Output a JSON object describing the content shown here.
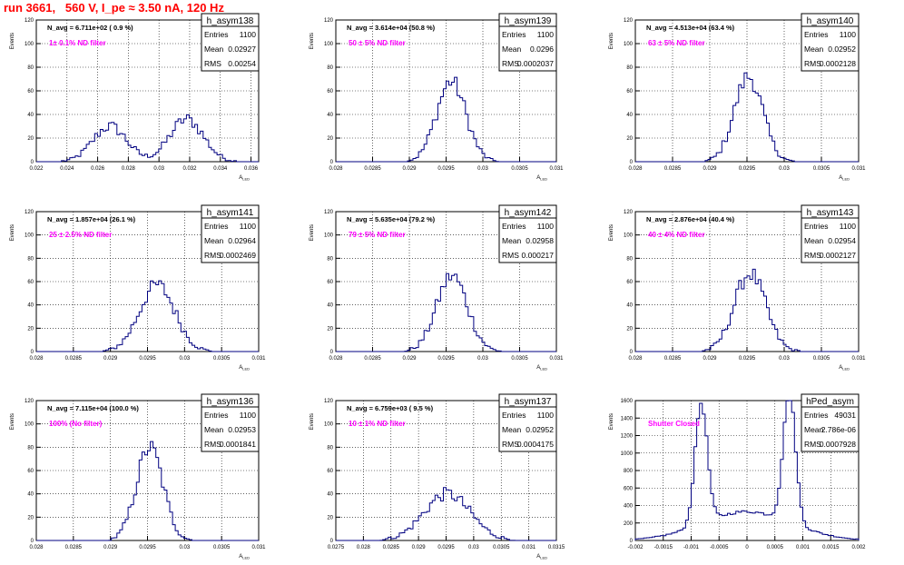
{
  "canvas_title": "run 3661,   560 V, I_pe ≈ 3.50 nA, 120 Hz",
  "colors": {
    "title": "#ff0000",
    "histogram": "#000080",
    "filter_label": "#ff00ff",
    "grid": "#000000",
    "axes": "#000000"
  },
  "chart_data": [
    {
      "type": "histogram",
      "name": "h_asym138",
      "navg": "N_avg = 6.711e+02 ( 0.9 %)",
      "filter": "1± 0.1% ND filter",
      "stats": {
        "entries": "1100",
        "mean": "0.02927",
        "rms": "0.00254"
      },
      "ylabel": "Events",
      "xlabel": "A_{LED}",
      "xlim": [
        0.022,
        0.0365
      ],
      "ylim": [
        0,
        120
      ],
      "xticks": [
        0.022,
        0.024,
        0.026,
        0.028,
        0.03,
        0.032,
        0.034,
        0.036
      ],
      "xticklabels": [
        "0.022",
        "0.024",
        "0.026",
        "0.028",
        "0.03",
        "0.032",
        "0.034",
        "0.036"
      ],
      "yticks": [
        0,
        20,
        40,
        60,
        80,
        100,
        120
      ],
      "yticklabels": [
        "0",
        "20",
        "40",
        "60",
        "80",
        "100",
        "120"
      ],
      "grid": true,
      "peaks": [
        [
          0.0268,
          0.0011,
          30
        ],
        [
          0.0318,
          0.0011,
          36
        ]
      ]
    },
    {
      "type": "histogram",
      "name": "h_asym139",
      "navg": "N_avg = 3.614e+04 (50.8 %)",
      "filter": "50 ± 5% ND filter",
      "stats": {
        "entries": "1100",
        "mean": "0.0296",
        "rms": "0.0002037"
      },
      "ylabel": "Events",
      "xlabel": "A_{LED}",
      "xlim": [
        0.028,
        0.031
      ],
      "ylim": [
        0,
        120
      ],
      "xticks": [
        0.028,
        0.0285,
        0.029,
        0.0295,
        0.03,
        0.0305,
        0.031
      ],
      "xticklabels": [
        "0.028",
        "0.0285",
        "0.029",
        "0.0295",
        "0.03",
        "0.0305",
        "0.031"
      ],
      "yticks": [
        0,
        20,
        40,
        60,
        80,
        100,
        120
      ],
      "yticklabels": [
        "0",
        "20",
        "40",
        "60",
        "80",
        "100",
        "120"
      ],
      "grid": true,
      "peaks": [
        [
          0.02957,
          0.0002,
          68
        ]
      ]
    },
    {
      "type": "histogram",
      "name": "h_asym140",
      "navg": "N_avg = 4.513e+04 (63.4 %)",
      "filter": "63 ± 5% ND filter",
      "stats": {
        "entries": "1100",
        "mean": "0.02952",
        "rms": "0.0002128"
      },
      "ylabel": "Events",
      "xlabel": "A_{LED}",
      "xlim": [
        0.028,
        0.031
      ],
      "ylim": [
        0,
        120
      ],
      "xticks": [
        0.028,
        0.0285,
        0.029,
        0.0295,
        0.03,
        0.0305,
        0.031
      ],
      "xticklabels": [
        "0.028",
        "0.0285",
        "0.029",
        "0.0295",
        "0.03",
        "0.0305",
        "0.031"
      ],
      "yticks": [
        0,
        20,
        40,
        60,
        80,
        100,
        120
      ],
      "yticklabels": [
        "0",
        "20",
        "40",
        "60",
        "80",
        "100",
        "120"
      ],
      "grid": true,
      "peaks": [
        [
          0.02952,
          0.00019,
          72
        ]
      ]
    },
    {
      "type": "histogram",
      "name": "h_asym141",
      "navg": "N_avg = 1.857e+04 (26.1 %)",
      "filter": "25 ± 2.5% ND filter",
      "stats": {
        "entries": "1100",
        "mean": "0.02964",
        "rms": "0.0002469"
      },
      "ylabel": "Events",
      "xlabel": "A_{LED}",
      "xlim": [
        0.028,
        0.031
      ],
      "ylim": [
        0,
        120
      ],
      "xticks": [
        0.028,
        0.0285,
        0.029,
        0.0295,
        0.03,
        0.0305,
        0.031
      ],
      "xticklabels": [
        "0.028",
        "0.0285",
        "0.029",
        "0.0295",
        "0.03",
        "0.0305",
        "0.031"
      ],
      "yticks": [
        0,
        20,
        40,
        60,
        80,
        100,
        120
      ],
      "yticklabels": [
        "0",
        "20",
        "40",
        "60",
        "80",
        "100",
        "120"
      ],
      "grid": true,
      "peaks": [
        [
          0.02963,
          0.00024,
          57
        ]
      ]
    },
    {
      "type": "histogram",
      "name": "h_asym142",
      "navg": "N_avg = 5.635e+04 (79.2 %)",
      "filter": "79 ± 5% ND filter",
      "stats": {
        "entries": "1100",
        "mean": "0.02958",
        "rms": "0.000217"
      },
      "ylabel": "Events",
      "xlabel": "A_{LED}",
      "xlim": [
        0.028,
        0.031
      ],
      "ylim": [
        0,
        120
      ],
      "xticks": [
        0.028,
        0.0285,
        0.029,
        0.0295,
        0.03,
        0.0305,
        0.031
      ],
      "xticklabels": [
        "0.028",
        "0.0285",
        "0.029",
        "0.0295",
        "0.03",
        "0.0305",
        "0.031"
      ],
      "yticks": [
        0,
        20,
        40,
        60,
        80,
        100,
        120
      ],
      "yticklabels": [
        "0",
        "20",
        "40",
        "60",
        "80",
        "100",
        "120"
      ],
      "grid": true,
      "peaks": [
        [
          0.02958,
          0.00021,
          65
        ]
      ]
    },
    {
      "type": "histogram",
      "name": "h_asym143",
      "navg": "N_avg = 2.876e+04 (40.4 %)",
      "filter": "40 ± 4% ND filter",
      "stats": {
        "entries": "1100",
        "mean": "0.02954",
        "rms": "0.0002127"
      },
      "ylabel": "Events",
      "xlabel": "A_{LED}",
      "xlim": [
        0.028,
        0.031
      ],
      "ylim": [
        0,
        120
      ],
      "xticks": [
        0.028,
        0.0285,
        0.029,
        0.0295,
        0.03,
        0.0305,
        0.031
      ],
      "xticklabels": [
        "0.028",
        "0.0285",
        "0.029",
        "0.0295",
        "0.03",
        "0.0305",
        "0.031"
      ],
      "yticks": [
        0,
        20,
        40,
        60,
        80,
        100,
        120
      ],
      "yticklabels": [
        "0",
        "20",
        "40",
        "60",
        "80",
        "100",
        "120"
      ],
      "grid": true,
      "peaks": [
        [
          0.02954,
          0.00021,
          67
        ]
      ]
    },
    {
      "type": "histogram",
      "name": "h_asym136",
      "navg": "N_avg = 7.115e+04 (100.0 %)",
      "filter": "100% (No filter)",
      "stats": {
        "entries": "1100",
        "mean": "0.02953",
        "rms": "0.0001841"
      },
      "ylabel": "Events",
      "xlabel": "A_{LED}",
      "xlim": [
        0.028,
        0.031
      ],
      "ylim": [
        0,
        120
      ],
      "xticks": [
        0.028,
        0.0285,
        0.029,
        0.0295,
        0.03,
        0.0305,
        0.031
      ],
      "xticklabels": [
        "0.028",
        "0.0285",
        "0.029",
        "0.0295",
        "0.03",
        "0.0305",
        "0.031"
      ],
      "yticks": [
        0,
        20,
        40,
        60,
        80,
        100,
        120
      ],
      "yticklabels": [
        "0",
        "20",
        "40",
        "60",
        "80",
        "100",
        "120"
      ],
      "grid": true,
      "peaks": [
        [
          0.02953,
          0.00018,
          80
        ]
      ]
    },
    {
      "type": "histogram",
      "name": "h_asym137",
      "navg": "N_avg = 6.759e+03 ( 9.5 %)",
      "filter": "10 ± 1% ND filter",
      "stats": {
        "entries": "1100",
        "mean": "0.02952",
        "rms": "0.0004175"
      },
      "ylabel": "Events",
      "xlabel": "A_{LED}",
      "xlim": [
        0.0275,
        0.0315
      ],
      "ylim": [
        0,
        120
      ],
      "xticks": [
        0.0275,
        0.028,
        0.0285,
        0.029,
        0.0295,
        0.03,
        0.0305,
        0.031,
        0.0315
      ],
      "xticklabels": [
        "0.0275",
        "0.028",
        "0.0285",
        "0.029",
        "0.0295",
        "0.03",
        "0.0305",
        "0.031",
        "0.0315"
      ],
      "yticks": [
        0,
        20,
        40,
        60,
        80,
        100,
        120
      ],
      "yticklabels": [
        "0",
        "20",
        "40",
        "60",
        "80",
        "100",
        "120"
      ],
      "grid": true,
      "peaks": [
        [
          0.02952,
          0.00042,
          40
        ]
      ]
    },
    {
      "type": "histogram",
      "name": "hPed_asym",
      "navg": "",
      "filter": "Shutter Closed",
      "stats": {
        "entries": "49031",
        "mean": "2.786e-06",
        "rms": "0.0007928"
      },
      "ylabel": "Events",
      "xlabel": "",
      "xlim": [
        -0.002,
        0.002
      ],
      "ylim": [
        0,
        1600
      ],
      "xticks": [
        -0.002,
        -0.0015,
        -0.001,
        -0.0005,
        0,
        0.0005,
        0.001,
        0.0015,
        0.002
      ],
      "xticklabels": [
        "-0.002",
        "-0.0015",
        "-0.001",
        "-0.0005",
        "0",
        "0.0005",
        "0.001",
        "0.0015",
        "0.002"
      ],
      "yticks": [
        0,
        200,
        400,
        600,
        800,
        1000,
        1200,
        1400,
        1600
      ],
      "yticklabels": [
        "0",
        "200",
        "400",
        "600",
        "800",
        "1000",
        "1200",
        "1400",
        "1600"
      ],
      "grid": true,
      "peaks": [
        [
          -0.00082,
          0.00011,
          1380
        ],
        [
          0.00076,
          0.00011,
          1480
        ],
        [
          0,
          0.0008,
          330
        ]
      ]
    }
  ]
}
